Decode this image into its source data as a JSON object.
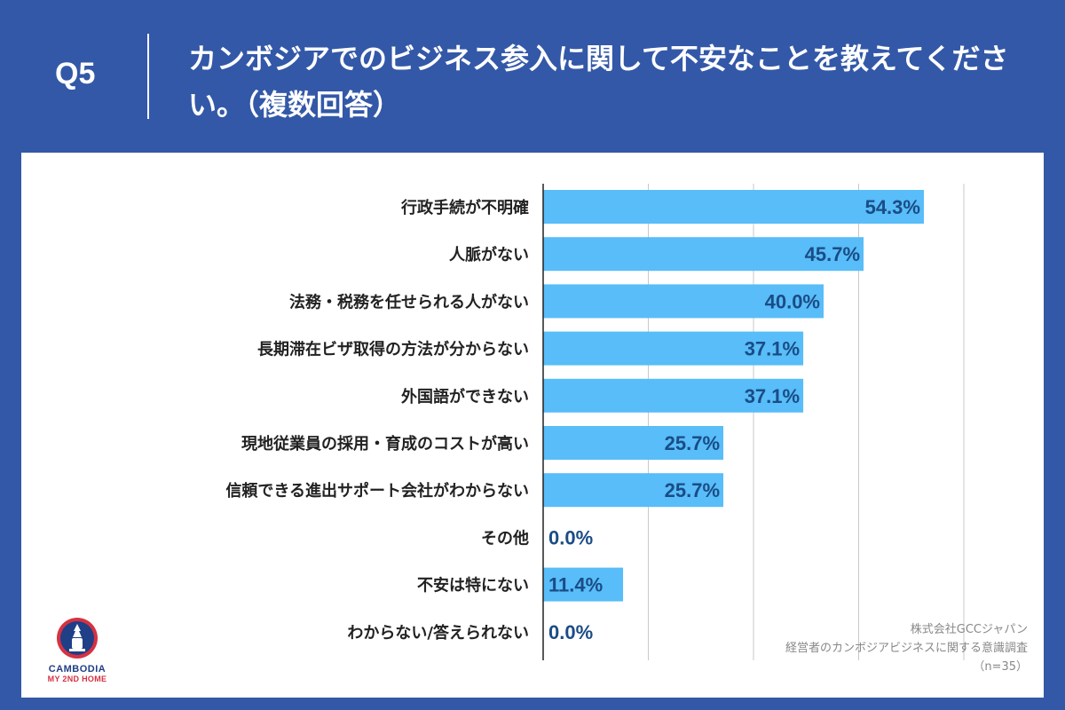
{
  "header": {
    "question_label": "Q5",
    "title": "カンボジアでのビジネス参入に関して不安なことを教えてください。（複数回答）"
  },
  "source": {
    "line1": "株式会社GCCジャパン",
    "line2": "経営者のカンボジアビジネスに関する意識調査",
    "line3": "（n=35）"
  },
  "logo": {
    "top": "CAMBODIA",
    "bottom": "MY 2ND HOME"
  },
  "colors": {
    "background": "#3358a8",
    "bar": "#58bdf8",
    "value_label": "#1a4c86"
  },
  "chart_data": {
    "type": "bar",
    "orientation": "horizontal",
    "categories": [
      "行政手続が不明確",
      "人脈がない",
      "法務・税務を任せられる人がない",
      "長期滞在ビザ取得の方法が分からない",
      "外国語ができない",
      "現地従業員の採用・育成のコストが高い",
      "信頼できる進出サポート会社がわからない",
      "その他",
      "不安は特にない",
      "わからない/答えられない"
    ],
    "values": [
      54.3,
      45.7,
      40.0,
      37.1,
      37.1,
      25.7,
      25.7,
      0.0,
      11.4,
      0.0
    ],
    "value_labels": [
      "54.3%",
      "45.7%",
      "40.0%",
      "37.1%",
      "37.1%",
      "25.7%",
      "25.7%",
      "0.0%",
      "11.4%",
      "0.0%"
    ],
    "xlim": [
      0,
      60
    ],
    "grid": true
  }
}
